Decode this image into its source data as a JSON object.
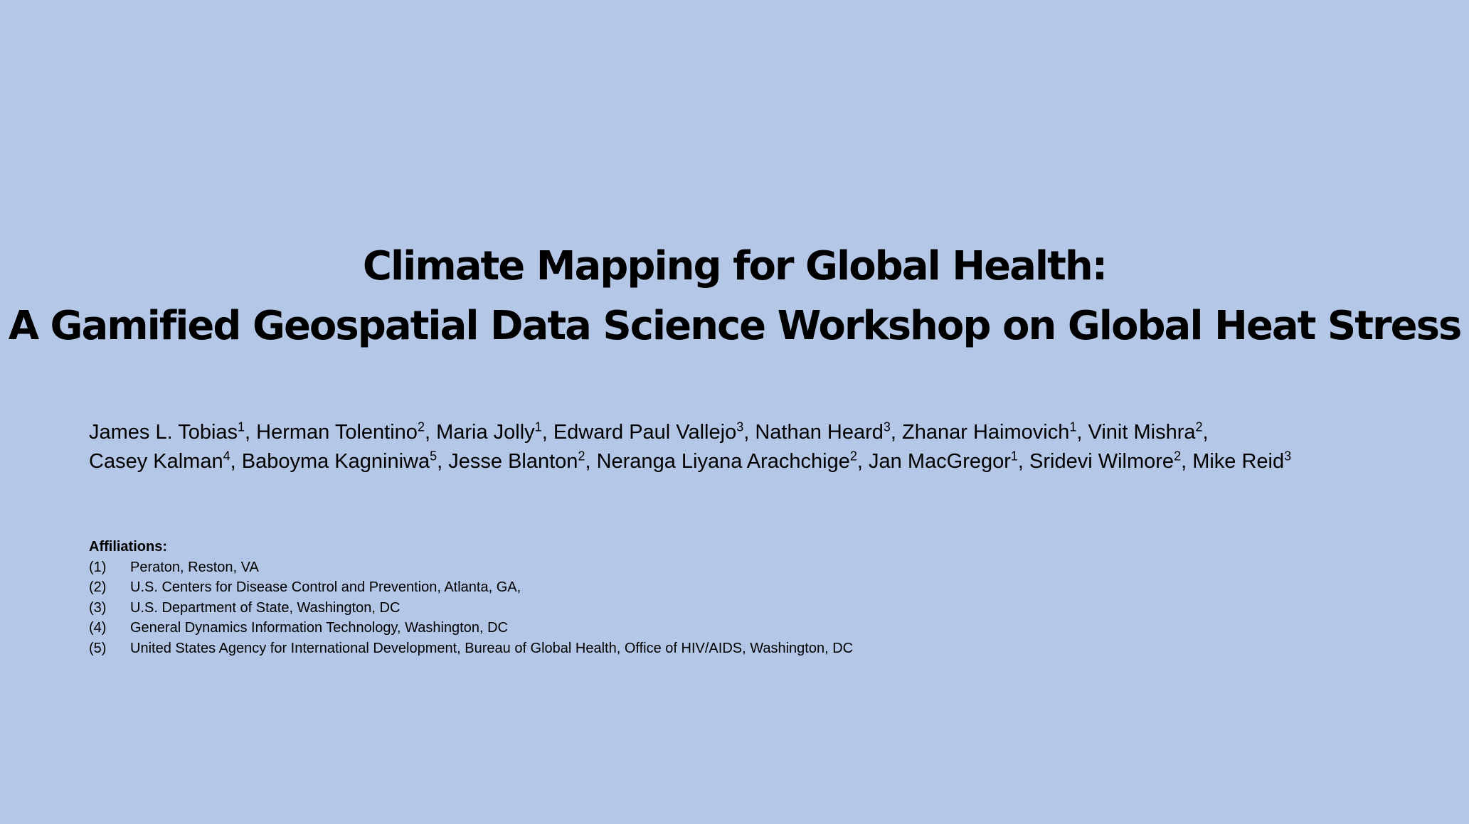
{
  "title": {
    "line1": "Climate Mapping for Global Health:",
    "line2": "A Gamified Geospatial Data Science Workshop on Global Heat Stress"
  },
  "authors": {
    "line1": [
      {
        "name": "James L. Tobias",
        "sup": "1",
        "sep": ", "
      },
      {
        "name": "Herman Tolentino",
        "sup": "2",
        "sep": ", "
      },
      {
        "name": "Maria Jolly",
        "sup": "1",
        "sep": ", "
      },
      {
        "name": "Edward Paul Vallejo",
        "sup": "3",
        "sep": ", "
      },
      {
        "name": "Nathan Heard",
        "sup": "3",
        "sep": ", "
      },
      {
        "name": "Zhanar Haimovich",
        "sup": "1",
        "sep": ", "
      },
      {
        "name": "Vinit Mishra",
        "sup": "2",
        "sep": ","
      }
    ],
    "line2": [
      {
        "name": "Casey Kalman",
        "sup": "4",
        "sep": ", "
      },
      {
        "name": "Baboyma Kagniniwa",
        "sup": "5",
        "sep": ", "
      },
      {
        "name": "Jesse Blanton",
        "sup": "2",
        "sep": ", "
      },
      {
        "name": "Neranga Liyana Arachchige",
        "sup": "2",
        "sep": ", "
      },
      {
        "name": "Jan MacGregor",
        "sup": "1",
        "sep": ", "
      },
      {
        "name": "Sridevi Wilmore",
        "sup": "2",
        "sep": ", "
      },
      {
        "name": "Mike Reid",
        "sup": "3",
        "sep": ""
      }
    ]
  },
  "affiliations": {
    "heading": "Affiliations:",
    "items": [
      {
        "num": "(1)",
        "text": "Peraton, Reston, VA"
      },
      {
        "num": "(2)",
        "text": "U.S. Centers for Disease Control and Prevention, Atlanta, GA,"
      },
      {
        "num": "(3)",
        "text": "U.S. Department of State, Washington, DC"
      },
      {
        "num": "(4)",
        "text": "General Dynamics Information Technology, Washington, DC"
      },
      {
        "num": "(5)",
        "text": "United States Agency for International Development, Bureau of Global Health, Office of HIV/AIDS, Washington, DC"
      }
    ]
  },
  "colors": {
    "background": "#b4c7e7",
    "text": "#000000"
  }
}
